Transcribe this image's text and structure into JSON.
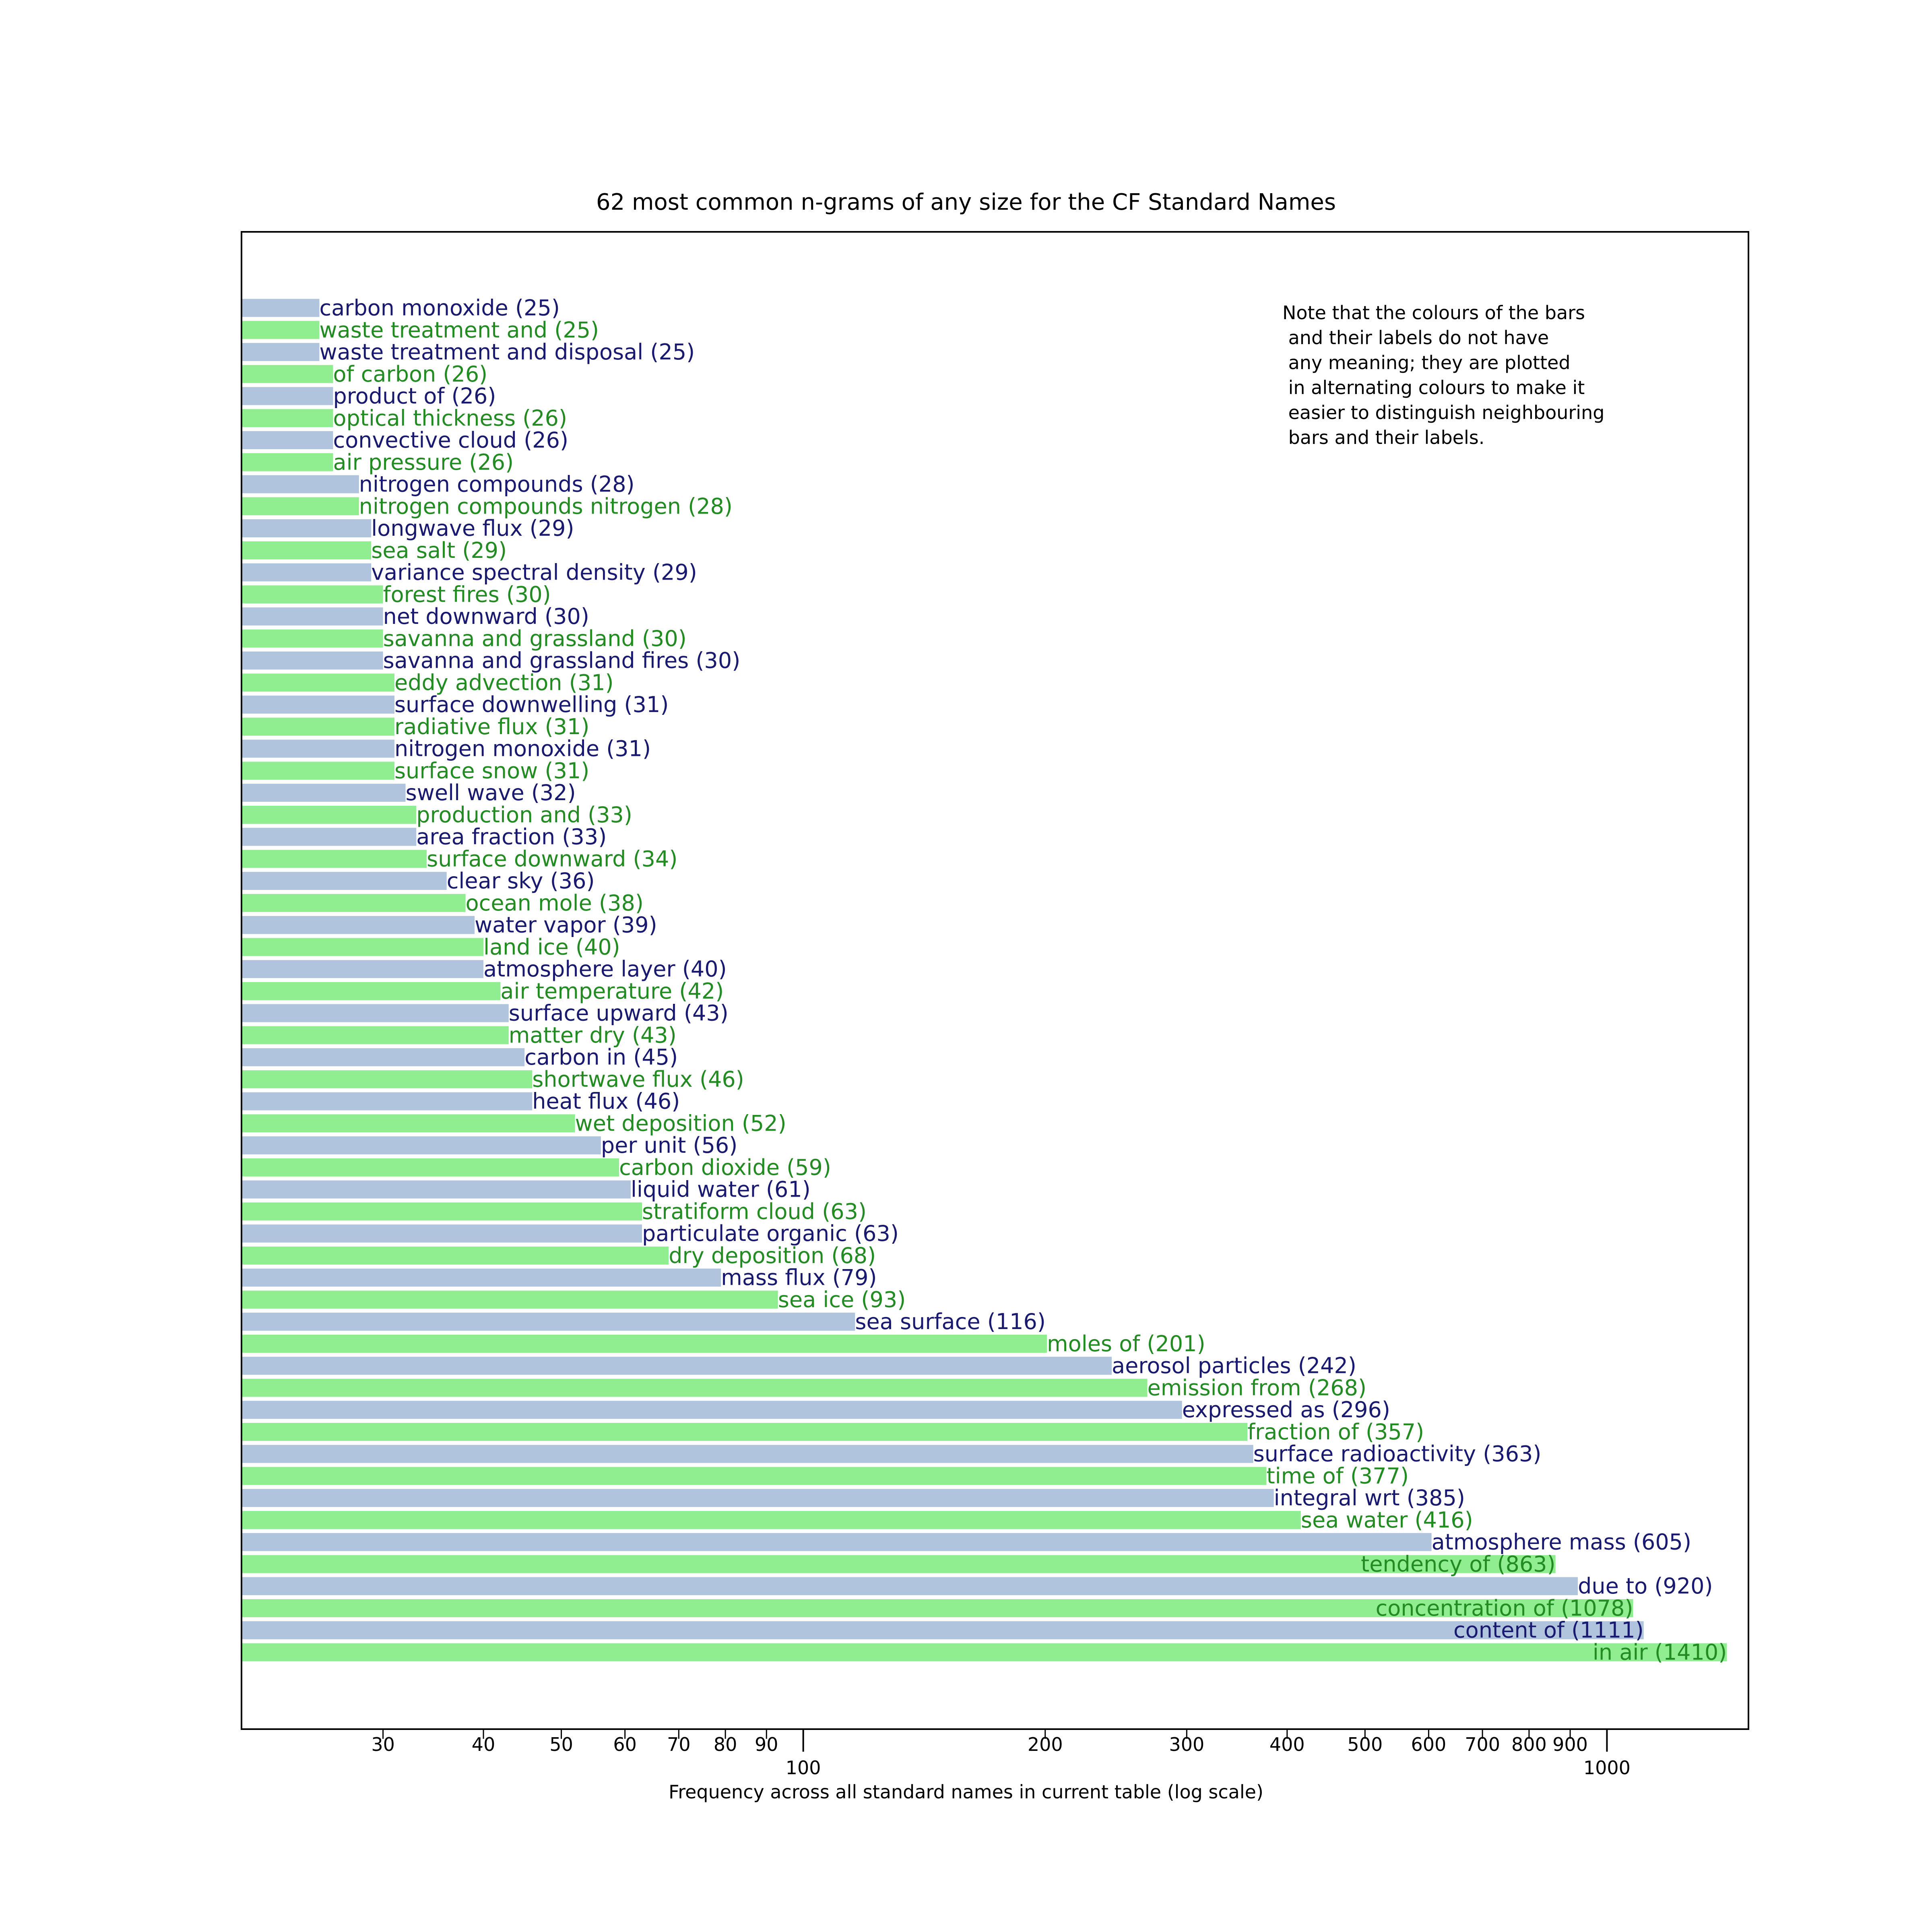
{
  "chart_data": {
    "type": "bar",
    "orientation": "horizontal",
    "title": "62 most common n-grams of any size for the CF Standard Names",
    "xlabel": "Frequency across all standard names in current table (log scale)",
    "ylabel": "",
    "xscale": "log",
    "xlim": [
      20,
      1500
    ],
    "x_major_ticks": [
      "100",
      "1000"
    ],
    "x_minor_ticks": [
      "30",
      "40",
      "50",
      "60",
      "70",
      "80",
      "90",
      "200",
      "300",
      "400",
      "500",
      "600",
      "700",
      "800",
      "900"
    ],
    "grid": false,
    "colors": {
      "bar_a": "#b0c4de",
      "bar_b": "#90ee90",
      "label_a": "#191970",
      "label_b": "#228b22"
    },
    "annotation": "Note that the colours of the bars\n and their labels do not have\n any meaning; they are plotted\n in alternating colours to make it\n easier to distinguish neighbouring\n bars and their labels.",
    "bars": [
      {
        "label": "carbon monoxide (25)",
        "value": 25
      },
      {
        "label": "waste treatment and (25)",
        "value": 25
      },
      {
        "label": "waste treatment and disposal (25)",
        "value": 25
      },
      {
        "label": "of carbon (26)",
        "value": 26
      },
      {
        "label": "product of (26)",
        "value": 26
      },
      {
        "label": "optical thickness (26)",
        "value": 26
      },
      {
        "label": "convective cloud (26)",
        "value": 26
      },
      {
        "label": "air pressure (26)",
        "value": 26
      },
      {
        "label": "nitrogen compounds (28)",
        "value": 28
      },
      {
        "label": "nitrogen compounds nitrogen (28)",
        "value": 28
      },
      {
        "label": "longwave flux (29)",
        "value": 29
      },
      {
        "label": "sea salt (29)",
        "value": 29
      },
      {
        "label": "variance spectral density (29)",
        "value": 29
      },
      {
        "label": "forest fires (30)",
        "value": 30
      },
      {
        "label": "net downward (30)",
        "value": 30
      },
      {
        "label": "savanna and grassland (30)",
        "value": 30
      },
      {
        "label": "savanna and grassland fires (30)",
        "value": 30
      },
      {
        "label": "eddy advection (31)",
        "value": 31
      },
      {
        "label": "surface downwelling (31)",
        "value": 31
      },
      {
        "label": "radiative flux (31)",
        "value": 31
      },
      {
        "label": "nitrogen monoxide (31)",
        "value": 31
      },
      {
        "label": "surface snow (31)",
        "value": 31
      },
      {
        "label": "swell wave (32)",
        "value": 32
      },
      {
        "label": "production and (33)",
        "value": 33
      },
      {
        "label": "area fraction (33)",
        "value": 33
      },
      {
        "label": "surface downward (34)",
        "value": 34
      },
      {
        "label": "clear sky (36)",
        "value": 36
      },
      {
        "label": "ocean mole (38)",
        "value": 38
      },
      {
        "label": "water vapor (39)",
        "value": 39
      },
      {
        "label": "land ice (40)",
        "value": 40
      },
      {
        "label": "atmosphere layer (40)",
        "value": 40
      },
      {
        "label": "air temperature (42)",
        "value": 42
      },
      {
        "label": "surface upward (43)",
        "value": 43
      },
      {
        "label": "matter dry (43)",
        "value": 43
      },
      {
        "label": "carbon in (45)",
        "value": 45
      },
      {
        "label": "shortwave flux (46)",
        "value": 46
      },
      {
        "label": "heat flux (46)",
        "value": 46
      },
      {
        "label": "wet deposition (52)",
        "value": 52
      },
      {
        "label": "per unit (56)",
        "value": 56
      },
      {
        "label": "carbon dioxide (59)",
        "value": 59
      },
      {
        "label": "liquid water (61)",
        "value": 61
      },
      {
        "label": "stratiform cloud (63)",
        "value": 63
      },
      {
        "label": "particulate organic (63)",
        "value": 63
      },
      {
        "label": "dry deposition (68)",
        "value": 68
      },
      {
        "label": "mass flux (79)",
        "value": 79
      },
      {
        "label": "sea ice (93)",
        "value": 93
      },
      {
        "label": "sea surface (116)",
        "value": 116
      },
      {
        "label": "moles of (201)",
        "value": 201
      },
      {
        "label": "aerosol particles (242)",
        "value": 242
      },
      {
        "label": "emission from (268)",
        "value": 268
      },
      {
        "label": "expressed as (296)",
        "value": 296
      },
      {
        "label": "fraction of (357)",
        "value": 357
      },
      {
        "label": "surface radioactivity (363)",
        "value": 363
      },
      {
        "label": "time of (377)",
        "value": 377
      },
      {
        "label": "integral wrt (385)",
        "value": 385
      },
      {
        "label": "sea water (416)",
        "value": 416
      },
      {
        "label": "atmosphere mass (605)",
        "value": 605
      },
      {
        "label": "tendency of (863)",
        "value": 863
      },
      {
        "label": "due to (920)",
        "value": 920
      },
      {
        "label": "concentration of (1078)",
        "value": 1078
      },
      {
        "label": "content of (1111)",
        "value": 1111
      },
      {
        "label": "in air (1410)",
        "value": 1410
      }
    ]
  }
}
